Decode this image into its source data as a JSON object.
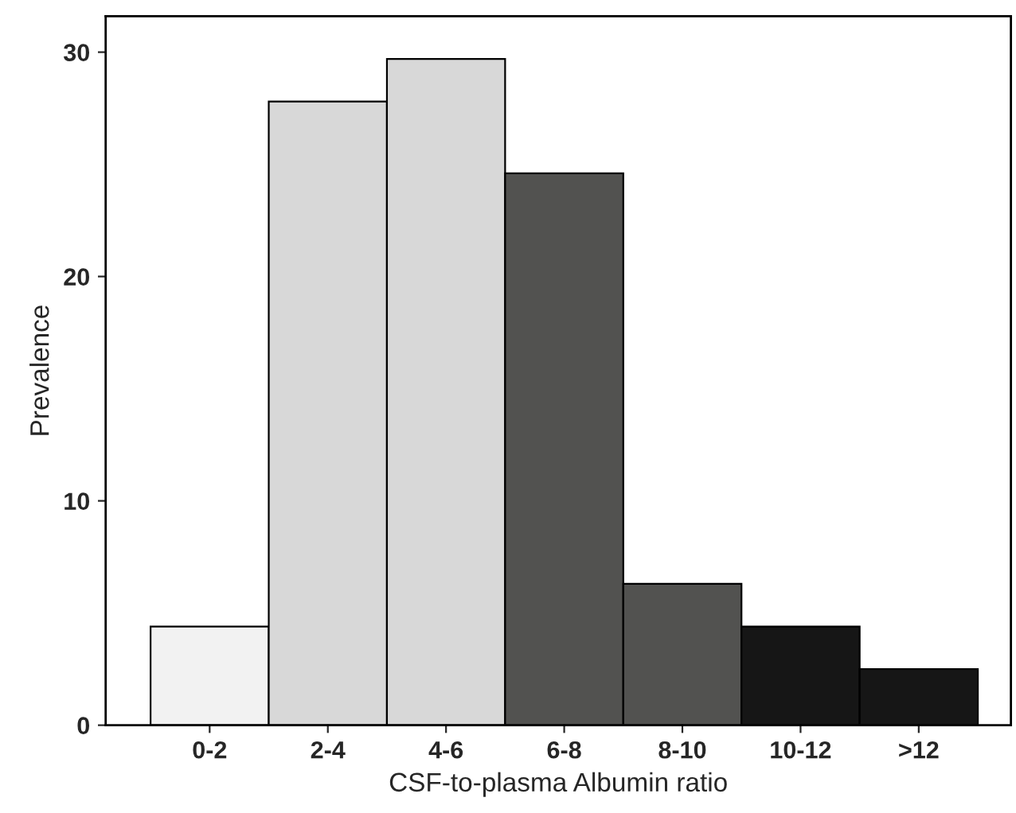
{
  "chart_data": {
    "type": "bar",
    "xlabel": "CSF-to-plasma Albumin ratio",
    "ylabel": "Prevalence",
    "categories": [
      "0-2",
      "2-4",
      "4-6",
      "6-8",
      "8-10",
      "10-12",
      ">12"
    ],
    "values": [
      4.4,
      27.8,
      29.7,
      24.6,
      6.3,
      4.4,
      2.5
    ],
    "colors": [
      "#f2f2f2",
      "#d8d8d8",
      "#d8d8d8",
      "#525250",
      "#525250",
      "#161616",
      "#161616"
    ],
    "ylim": [
      0,
      31.6
    ],
    "yticks": [
      0,
      10,
      20,
      30
    ],
    "grid": false,
    "legend": false
  }
}
